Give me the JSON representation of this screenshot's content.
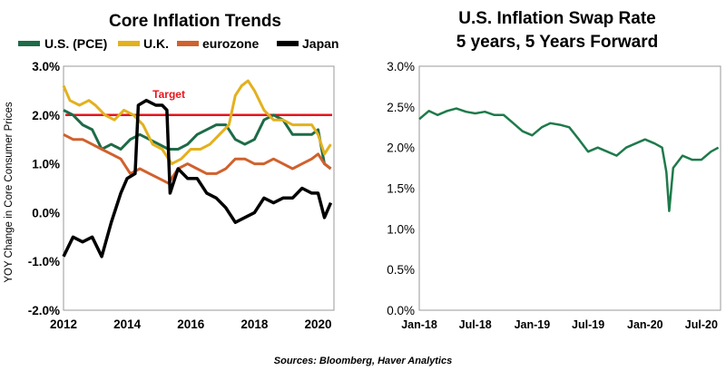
{
  "chart_data": [
    {
      "type": "line",
      "title": "Core Inflation Trends",
      "ylabel": "YOY Change in Core Consumer Prices",
      "xlabel": "",
      "xlim": [
        2012,
        2020.5
      ],
      "ylim": [
        -2.0,
        3.0
      ],
      "x_ticks": [
        "2012",
        "2014",
        "2016",
        "2018",
        "2020"
      ],
      "y_ticks": [
        "3.0%",
        "2.0%",
        "1.0%",
        "0.0%",
        "-1.0%",
        "-2.0%"
      ],
      "grid": false,
      "legend_position": "top",
      "target": {
        "label": "Target",
        "value": 2.0,
        "color": "#e8141b"
      },
      "series": [
        {
          "name": "U.S. (PCE)",
          "color": "#1e6b47",
          "x": [
            2012,
            2012.3,
            2012.6,
            2012.9,
            2013.2,
            2013.5,
            2013.8,
            2014.1,
            2014.4,
            2014.7,
            2015.0,
            2015.3,
            2015.6,
            2015.9,
            2016.2,
            2016.5,
            2016.8,
            2017.1,
            2017.4,
            2017.7,
            2018.0,
            2018.3,
            2018.6,
            2018.9,
            2019.2,
            2019.5,
            2019.8,
            2020.0,
            2020.2,
            2020.4
          ],
          "values": [
            2.1,
            2.0,
            1.8,
            1.7,
            1.3,
            1.4,
            1.3,
            1.5,
            1.6,
            1.5,
            1.4,
            1.3,
            1.3,
            1.4,
            1.6,
            1.7,
            1.8,
            1.8,
            1.5,
            1.4,
            1.5,
            1.9,
            2.0,
            1.9,
            1.6,
            1.6,
            1.6,
            1.7,
            1.0,
            0.9
          ]
        },
        {
          "name": "U.K.",
          "color": "#e3b11e",
          "x": [
            2012,
            2012.2,
            2012.5,
            2012.8,
            2013.0,
            2013.3,
            2013.6,
            2013.9,
            2014.2,
            2014.5,
            2014.8,
            2015.1,
            2015.4,
            2015.7,
            2016.0,
            2016.3,
            2016.6,
            2016.9,
            2017.2,
            2017.4,
            2017.6,
            2017.8,
            2018.0,
            2018.3,
            2018.6,
            2018.9,
            2019.2,
            2019.5,
            2019.8,
            2020.0,
            2020.2,
            2020.4
          ],
          "values": [
            2.6,
            2.3,
            2.2,
            2.3,
            2.2,
            2.0,
            1.9,
            2.1,
            2.0,
            1.8,
            1.4,
            1.3,
            1.0,
            1.1,
            1.3,
            1.3,
            1.4,
            1.6,
            1.8,
            2.4,
            2.6,
            2.7,
            2.5,
            2.1,
            1.9,
            1.9,
            1.8,
            1.8,
            1.8,
            1.6,
            1.2,
            1.4
          ]
        },
        {
          "name": "eurozone",
          "color": "#d0612d",
          "x": [
            2012,
            2012.3,
            2012.6,
            2012.9,
            2013.2,
            2013.5,
            2013.8,
            2014.1,
            2014.4,
            2014.7,
            2015.0,
            2015.3,
            2015.6,
            2015.9,
            2016.2,
            2016.5,
            2016.8,
            2017.1,
            2017.4,
            2017.7,
            2018.0,
            2018.3,
            2018.6,
            2018.9,
            2019.2,
            2019.5,
            2019.8,
            2020.0,
            2020.2,
            2020.4
          ],
          "values": [
            1.6,
            1.5,
            1.5,
            1.4,
            1.3,
            1.2,
            1.1,
            0.8,
            0.9,
            0.8,
            0.7,
            0.6,
            0.9,
            1.0,
            0.9,
            0.8,
            0.8,
            0.9,
            1.1,
            1.1,
            1.0,
            1.0,
            1.1,
            1.0,
            0.9,
            1.0,
            1.1,
            1.2,
            1.0,
            0.9
          ]
        },
        {
          "name": "Japan",
          "color": "#000000",
          "x": [
            2012,
            2012.3,
            2012.6,
            2012.9,
            2013.2,
            2013.5,
            2013.8,
            2014.0,
            2014.25,
            2014.35,
            2014.6,
            2014.9,
            2015.1,
            2015.25,
            2015.35,
            2015.6,
            2015.9,
            2016.2,
            2016.5,
            2016.8,
            2017.1,
            2017.4,
            2017.7,
            2018.0,
            2018.3,
            2018.6,
            2018.9,
            2019.2,
            2019.5,
            2019.8,
            2020.0,
            2020.2,
            2020.4
          ],
          "values": [
            -0.9,
            -0.5,
            -0.6,
            -0.5,
            -0.9,
            -0.2,
            0.4,
            0.7,
            0.8,
            2.2,
            2.3,
            2.2,
            2.2,
            2.1,
            0.4,
            0.9,
            0.7,
            0.7,
            0.4,
            0.3,
            0.1,
            -0.2,
            -0.1,
            0.0,
            0.3,
            0.2,
            0.3,
            0.3,
            0.5,
            0.4,
            0.4,
            -0.1,
            0.2
          ]
        }
      ]
    },
    {
      "type": "line",
      "title": "U.S. Inflation Swap Rate",
      "subtitle": "5 years, 5 Years Forward",
      "xlabel": "",
      "ylabel": "",
      "xlim": [
        "2018-01",
        "2020-09"
      ],
      "ylim": [
        0.0,
        3.0
      ],
      "x_ticks": [
        "Jan-18",
        "Jul-18",
        "Jan-19",
        "Jul-19",
        "Jan-20",
        "Jul-20"
      ],
      "y_ticks": [
        "3.0%",
        "2.5%",
        "2.0%",
        "1.5%",
        "1.0%",
        "0.5%",
        "0.0%"
      ],
      "grid": false,
      "series": [
        {
          "name": "",
          "color": "#1e7a4a",
          "x": [
            "2018-01-01",
            "2018-02-01",
            "2018-03-01",
            "2018-04-01",
            "2018-05-01",
            "2018-06-01",
            "2018-07-01",
            "2018-08-01",
            "2018-09-01",
            "2018-10-01",
            "2018-11-01",
            "2018-12-01",
            "2019-01-01",
            "2019-02-01",
            "2019-03-01",
            "2019-04-01",
            "2019-05-01",
            "2019-06-01",
            "2019-07-01",
            "2019-08-01",
            "2019-09-01",
            "2019-10-01",
            "2019-11-01",
            "2019-12-01",
            "2020-01-01",
            "2020-02-01",
            "2020-02-25",
            "2020-03-10",
            "2020-03-19",
            "2020-04-01",
            "2020-05-01",
            "2020-06-01",
            "2020-07-01",
            "2020-08-01",
            "2020-08-25"
          ],
          "values": [
            2.35,
            2.45,
            2.4,
            2.45,
            2.48,
            2.44,
            2.42,
            2.44,
            2.4,
            2.4,
            2.3,
            2.2,
            2.15,
            2.25,
            2.3,
            2.28,
            2.25,
            2.1,
            1.95,
            2.0,
            1.95,
            1.9,
            2.0,
            2.05,
            2.1,
            2.05,
            2.0,
            1.7,
            1.22,
            1.75,
            1.9,
            1.85,
            1.85,
            1.95,
            2.0
          ]
        }
      ]
    }
  ],
  "source_note": "Sources: Bloomberg, Haver Analytics"
}
